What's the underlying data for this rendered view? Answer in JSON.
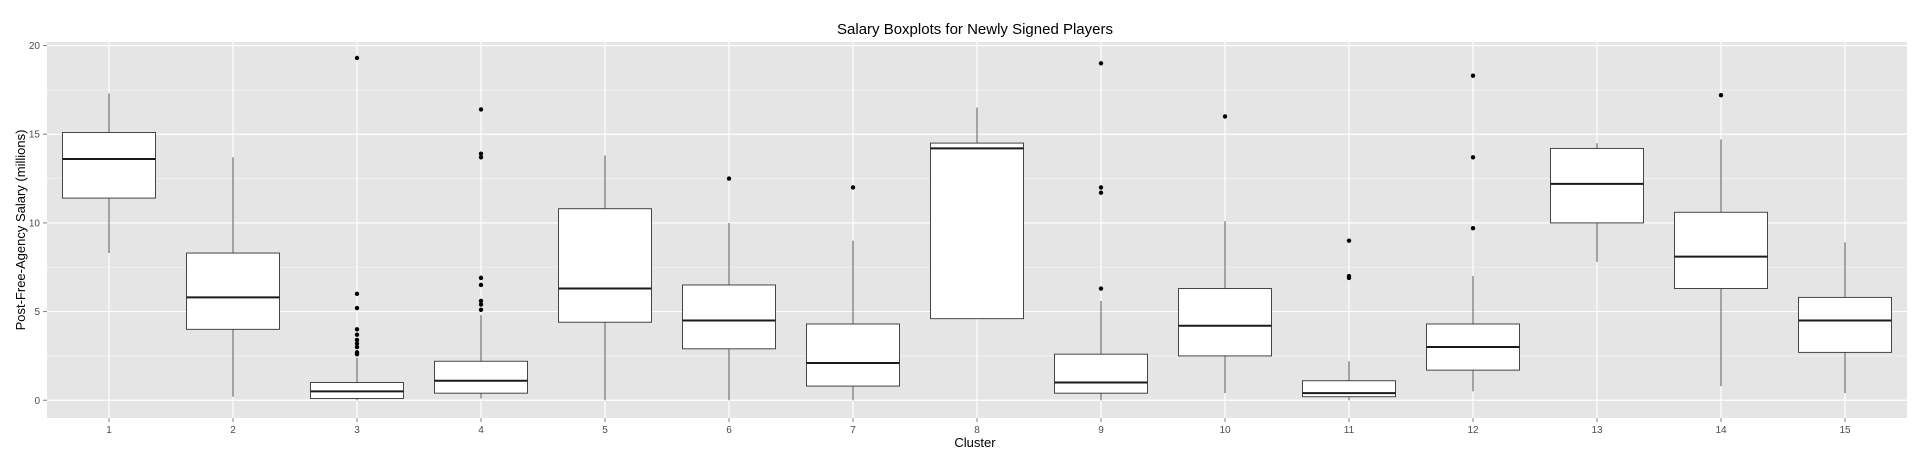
{
  "chart_data": {
    "type": "boxplot",
    "title": "Salary Boxplots for Newly Signed Players",
    "xlabel": "Cluster",
    "ylabel": "Post-Free-Agency Salary (millions)",
    "categories": [
      "1",
      "2",
      "3",
      "4",
      "5",
      "6",
      "7",
      "8",
      "9",
      "10",
      "11",
      "12",
      "13",
      "14",
      "15"
    ],
    "ylim": [
      -1,
      20.2
    ],
    "yticks": [
      0,
      5,
      10,
      15,
      20
    ],
    "ytick_labels": [
      "0",
      "5",
      "10",
      "15",
      "20"
    ],
    "grid": true,
    "boxes": [
      {
        "category": "1",
        "whisker_low": 8.3,
        "q1": 11.4,
        "median": 13.6,
        "q3": 15.1,
        "whisker_high": 17.3,
        "outliers": []
      },
      {
        "category": "2",
        "whisker_low": 0.2,
        "q1": 4.0,
        "median": 5.8,
        "q3": 8.3,
        "whisker_high": 13.7,
        "outliers": []
      },
      {
        "category": "3",
        "whisker_low": 0.0,
        "q1": 0.1,
        "median": 0.5,
        "q3": 1.0,
        "whisker_high": 2.4,
        "outliers": [
          2.6,
          2.7,
          3.0,
          3.2,
          3.4,
          3.7,
          4.0,
          5.2,
          6.0,
          19.3
        ]
      },
      {
        "category": "4",
        "whisker_low": 0.1,
        "q1": 0.4,
        "median": 1.1,
        "q3": 2.2,
        "whisker_high": 4.8,
        "outliers": [
          5.1,
          5.4,
          5.6,
          6.5,
          6.9,
          13.7,
          13.9,
          16.4
        ]
      },
      {
        "category": "5",
        "whisker_low": 0.0,
        "q1": 4.4,
        "median": 6.3,
        "q3": 10.8,
        "whisker_high": 13.8,
        "outliers": []
      },
      {
        "category": "6",
        "whisker_low": 0.0,
        "q1": 2.9,
        "median": 4.5,
        "q3": 6.5,
        "whisker_high": 10.0,
        "outliers": [
          12.5
        ]
      },
      {
        "category": "7",
        "whisker_low": 0.0,
        "q1": 0.8,
        "median": 2.1,
        "q3": 4.3,
        "whisker_high": 9.0,
        "outliers": [
          12.0
        ]
      },
      {
        "category": "8",
        "whisker_low": 4.6,
        "q1": 4.6,
        "median": 14.2,
        "q3": 14.5,
        "whisker_high": 16.5,
        "outliers": []
      },
      {
        "category": "9",
        "whisker_low": 0.0,
        "q1": 0.4,
        "median": 1.0,
        "q3": 2.6,
        "whisker_high": 5.6,
        "outliers": [
          6.3,
          11.7,
          12.0,
          19.0
        ]
      },
      {
        "category": "10",
        "whisker_low": 0.4,
        "q1": 2.5,
        "median": 4.2,
        "q3": 6.3,
        "whisker_high": 10.1,
        "outliers": [
          16.0
        ]
      },
      {
        "category": "11",
        "whisker_low": 0.0,
        "q1": 0.2,
        "median": 0.4,
        "q3": 1.1,
        "whisker_high": 2.2,
        "outliers": [
          6.9,
          7.0,
          9.0
        ]
      },
      {
        "category": "12",
        "whisker_low": 0.5,
        "q1": 1.7,
        "median": 3.0,
        "q3": 4.3,
        "whisker_high": 7.0,
        "outliers": [
          9.7,
          13.7,
          18.3
        ]
      },
      {
        "category": "13",
        "whisker_low": 7.8,
        "q1": 10.0,
        "median": 12.2,
        "q3": 14.2,
        "whisker_high": 14.5,
        "outliers": []
      },
      {
        "category": "14",
        "whisker_low": 0.8,
        "q1": 6.3,
        "median": 8.1,
        "q3": 10.6,
        "whisker_high": 14.7,
        "outliers": [
          17.2
        ]
      },
      {
        "category": "15",
        "whisker_low": 0.4,
        "q1": 2.7,
        "median": 4.5,
        "q3": 5.8,
        "whisker_high": 8.9,
        "outliers": []
      }
    ],
    "colors": {
      "panel_background": "#e5e5e5",
      "grid_major": "#ffffff",
      "grid_minor": "#f2f2f2",
      "box_fill": "#ffffff",
      "box_stroke": "#333333",
      "median": "#1a1a1a",
      "outlier": "#000000",
      "tick_text": "#4d4d4d"
    }
  }
}
